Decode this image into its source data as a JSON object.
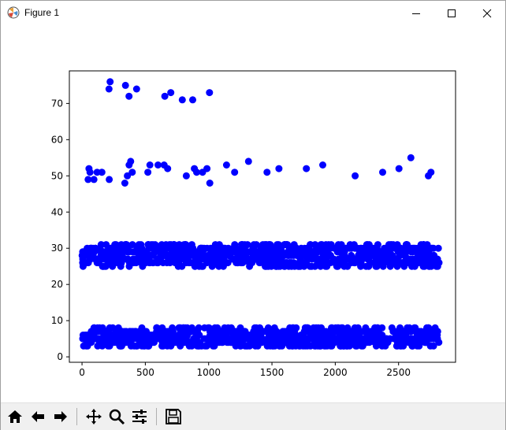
{
  "window": {
    "title": "Figure 1"
  },
  "icons": {
    "app": "matplotlib-figure-icon",
    "minimize": "minimize-icon",
    "maximize": "maximize-icon",
    "close": "close-icon"
  },
  "toolbar": {
    "buttons": [
      {
        "name": "home-icon"
      },
      {
        "name": "back-arrow-icon"
      },
      {
        "name": "forward-arrow-icon"
      },
      {
        "name": "pan-icon"
      },
      {
        "name": "zoom-icon"
      },
      {
        "name": "subplots-config-icon"
      },
      {
        "name": "save-icon"
      }
    ]
  },
  "chart_data": {
    "type": "scatter",
    "title": "",
    "xlabel": "",
    "ylabel": "",
    "xlim": [
      -100,
      2950
    ],
    "ylim": [
      -1.5,
      79
    ],
    "xticks": [
      0,
      500,
      1000,
      1500,
      2000,
      2500
    ],
    "yticks": [
      0,
      10,
      20,
      30,
      40,
      50,
      60,
      70
    ],
    "grid": false,
    "marker_color": "#0000ff",
    "bands": [
      {
        "y_range": [
          3,
          8
        ],
        "x_range": [
          0,
          2820
        ],
        "description": "dense cluster"
      },
      {
        "y_range": [
          25,
          31
        ],
        "x_range": [
          0,
          2820
        ],
        "description": "dense cluster"
      }
    ],
    "points": [
      [
        222,
        76
      ],
      [
        213,
        74
      ],
      [
        343,
        75
      ],
      [
        431,
        74
      ],
      [
        371,
        72
      ],
      [
        654,
        72
      ],
      [
        701,
        73
      ],
      [
        792,
        71
      ],
      [
        874,
        71
      ],
      [
        1007,
        73
      ],
      [
        48,
        49
      ],
      [
        55,
        52
      ],
      [
        63,
        51
      ],
      [
        94,
        49
      ],
      [
        119,
        51
      ],
      [
        157,
        51
      ],
      [
        215,
        49
      ],
      [
        338,
        48
      ],
      [
        358,
        50
      ],
      [
        372,
        53
      ],
      [
        384,
        54
      ],
      [
        397,
        51
      ],
      [
        520,
        51
      ],
      [
        536,
        53
      ],
      [
        600,
        53
      ],
      [
        648,
        53
      ],
      [
        676,
        52
      ],
      [
        824,
        50
      ],
      [
        887,
        52
      ],
      [
        905,
        51
      ],
      [
        952,
        51
      ],
      [
        987,
        52
      ],
      [
        1009,
        48
      ],
      [
        1141,
        53
      ],
      [
        1205,
        51
      ],
      [
        1315,
        54
      ],
      [
        1461,
        51
      ],
      [
        1555,
        52
      ],
      [
        1772,
        52
      ],
      [
        1901,
        53
      ],
      [
        2157,
        50
      ],
      [
        2374,
        51
      ],
      [
        2503,
        52
      ],
      [
        2597,
        55
      ],
      [
        2735,
        50
      ],
      [
        2756,
        51
      ]
    ]
  }
}
